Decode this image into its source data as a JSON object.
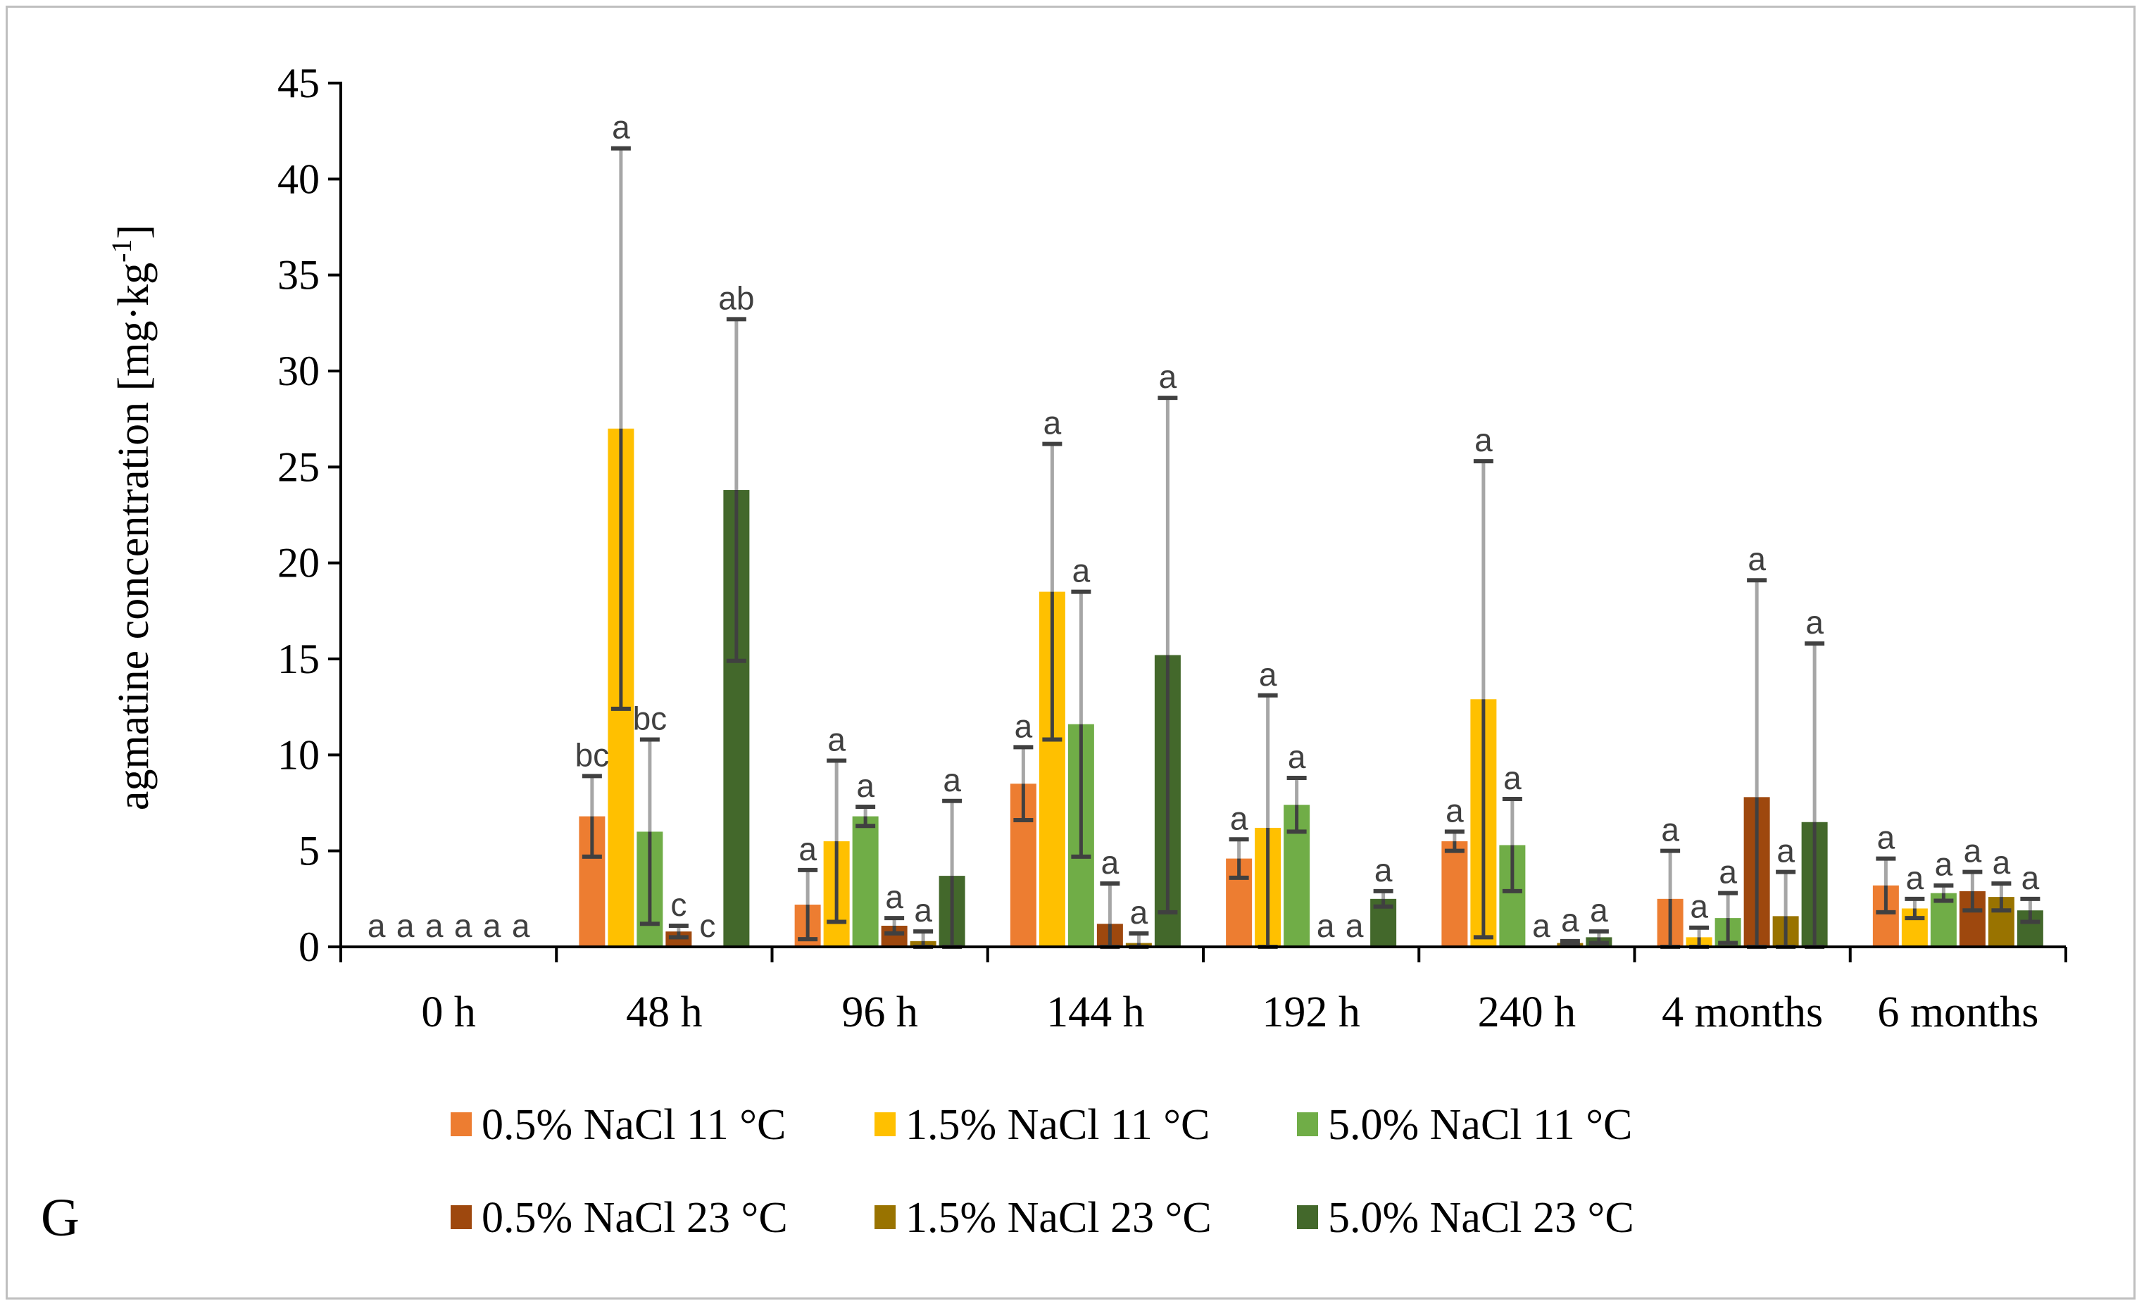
{
  "chart_data": {
    "type": "bar",
    "panel_label": "G",
    "ylabel": "agmatine concentration [mg·kg",
    "ylabel_superscript": "-1",
    "ylabel_close": "]",
    "ylim": [
      0,
      45
    ],
    "yticks": [
      0,
      5,
      10,
      15,
      20,
      25,
      30,
      35,
      40,
      45
    ],
    "categories": [
      "0 h",
      "48 h",
      "96 h",
      "144 h",
      "192 h",
      "240 h",
      "4 months",
      "6 months"
    ],
    "series": [
      {
        "name": "0.5% NaCl 11 °C",
        "color": "#ED7D31",
        "values": [
          0,
          6.8,
          2.2,
          8.5,
          4.6,
          5.5,
          2.5,
          3.2
        ],
        "errors": [
          0,
          2.1,
          1.8,
          1.9,
          1.0,
          0.5,
          2.5,
          1.4
        ],
        "letters": [
          "a",
          "bc",
          "a",
          "a",
          "a",
          "a",
          "a",
          "a"
        ]
      },
      {
        "name": "1.5% NaCl 11 °C",
        "color": "#FFC000",
        "values": [
          0,
          27.0,
          5.5,
          18.5,
          6.2,
          12.9,
          0.5,
          2.0
        ],
        "errors": [
          0,
          14.6,
          4.2,
          7.7,
          6.9,
          12.4,
          0.5,
          0.5
        ],
        "letters": [
          "a",
          "a",
          "a",
          "a",
          "a",
          "a",
          "a",
          "a"
        ]
      },
      {
        "name": "5.0% NaCl 11 °C",
        "color": "#70AD47",
        "values": [
          0,
          6.0,
          6.8,
          11.6,
          7.4,
          5.3,
          1.5,
          2.8
        ],
        "errors": [
          0,
          4.8,
          0.5,
          6.9,
          1.4,
          2.4,
          1.3,
          0.4
        ],
        "letters": [
          "a",
          "bc",
          "a",
          "a",
          "a",
          "a",
          "a",
          "a"
        ]
      },
      {
        "name": "0.5% NaCl 23 °C",
        "color": "#9E480E",
        "values": [
          0,
          0.8,
          1.1,
          1.2,
          0,
          0,
          7.8,
          2.9
        ],
        "errors": [
          0,
          0.3,
          0.4,
          2.1,
          0,
          0,
          11.3,
          1.0
        ],
        "letters": [
          "a",
          "c",
          "a",
          "a",
          "a",
          "a",
          "a",
          "a"
        ]
      },
      {
        "name": "1.5% NaCl 23 °C",
        "color": "#997300",
        "values": [
          0,
          0,
          0.3,
          0.2,
          0,
          0.2,
          1.6,
          2.6
        ],
        "errors": [
          0,
          0,
          0.5,
          0.5,
          0,
          0.1,
          2.3,
          0.7
        ],
        "letters": [
          "a",
          "c",
          "a",
          "a",
          "a",
          "a",
          "a",
          "a"
        ]
      },
      {
        "name": "5.0% NaCl 23 °C",
        "color": "#43682B",
        "values": [
          0,
          23.8,
          3.7,
          15.2,
          2.5,
          0.5,
          6.5,
          1.9
        ],
        "errors": [
          0,
          8.9,
          3.9,
          13.4,
          0.4,
          0.3,
          9.3,
          0.6
        ],
        "letters": [
          "a",
          "ab",
          "a",
          "a",
          "a",
          "a",
          "a",
          "a"
        ]
      }
    ],
    "legend_position": "bottom"
  }
}
